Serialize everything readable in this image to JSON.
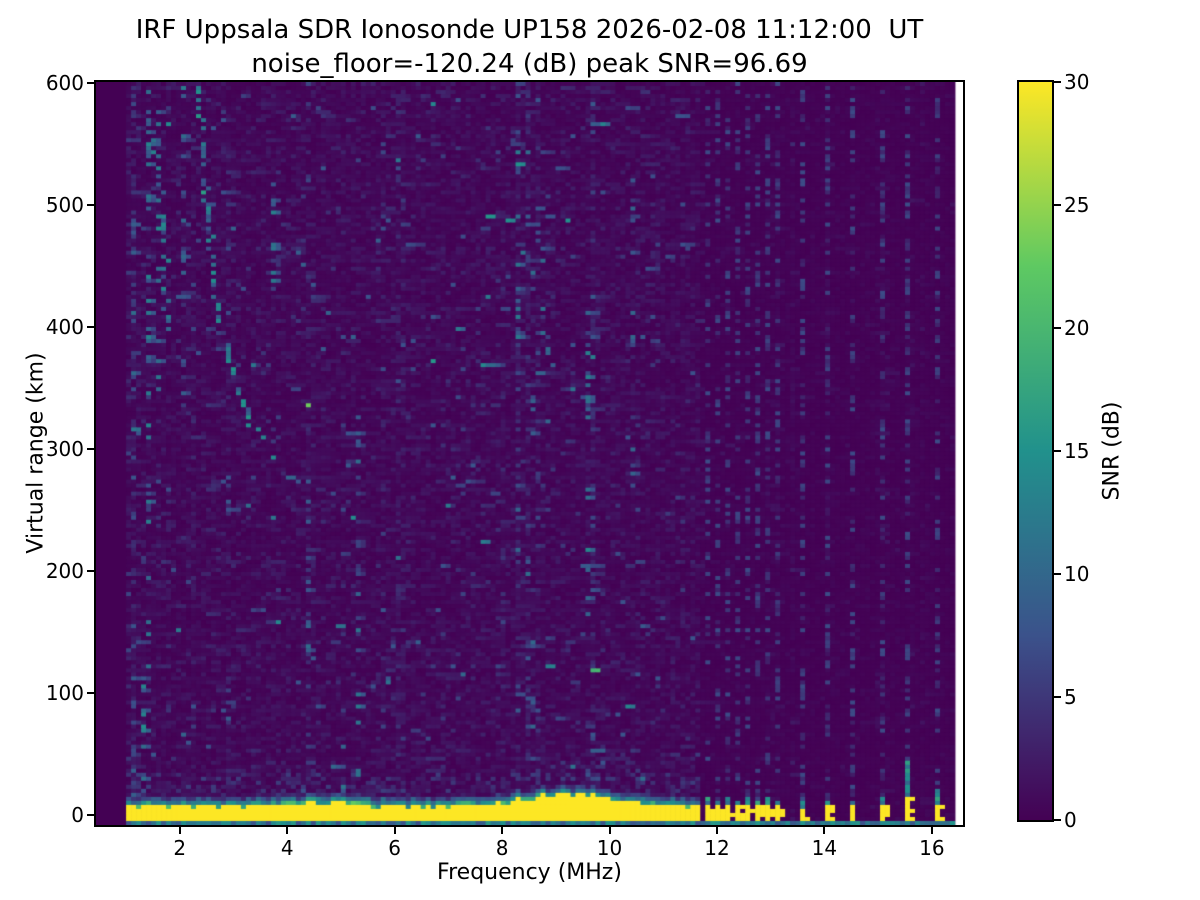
{
  "figure": {
    "title": "IRF Uppsala SDR Ionosonde UP158 2026-02-08 11:12:00  UT",
    "subtitle": "noise_floor=-120.24 (dB) peak SNR=96.69",
    "station": "UP158",
    "timestamp_ut": "2026-02-08 11:12:00 UT",
    "noise_floor_db": -120.24,
    "peak_snr_db": 96.69
  },
  "chart_data": {
    "type": "heatmap",
    "title": "IRF Uppsala SDR Ionosonde UP158 2026-02-08 11:12:00  UT",
    "subtitle": "noise_floor=-120.24 (dB) peak SNR=96.69",
    "xlabel": "Frequency (MHz)",
    "ylabel": "Virtual range (km)",
    "colorbar_label": "SNR (dB)",
    "xlim": [
      0.44,
      16.58
    ],
    "ylim": [
      -8.5,
      601
    ],
    "xticks": [
      2,
      4,
      6,
      8,
      10,
      12,
      14,
      16
    ],
    "yticks": [
      0,
      100,
      200,
      300,
      400,
      500,
      600
    ],
    "colorbar_ticks": [
      0,
      5,
      10,
      15,
      20,
      25,
      30
    ],
    "clim": [
      0,
      30
    ],
    "grid": false,
    "legend": false,
    "colormap": "viridis",
    "colormap_stops": [
      "#440154",
      "#3b528b",
      "#21918c",
      "#5ec962",
      "#fde725"
    ],
    "data_freq_range_mhz": [
      1.0,
      16.43
    ],
    "ground_echo": {
      "freq_mhz": [
        1.0,
        11.7
      ],
      "bottom_km": -6.5,
      "base_top_km": 7,
      "snr_db": 30,
      "bumps": [
        {
          "center_mhz": 8.9,
          "sigma_mhz": 0.55,
          "extra_km": 9
        },
        {
          "center_mhz": 9.8,
          "sigma_mhz": 0.35,
          "extra_km": 5
        },
        {
          "center_mhz": 4.6,
          "sigma_mhz": 0.5,
          "extra_km": 2.5
        },
        {
          "center_mhz": 10.8,
          "sigma_mhz": 0.3,
          "extra_km": 2
        }
      ]
    },
    "bottom_scatter_line": {
      "range_km": [
        -8,
        -6
      ],
      "snr_db": [
        7,
        16
      ]
    },
    "rfi_channels": [
      {
        "freq_mhz": 11.8,
        "bar_top_km": 8,
        "halo_top_km": 14
      },
      {
        "freq_mhz": 12.02,
        "bar_top_km": 7,
        "halo_top_km": 12
      },
      {
        "freq_mhz": 12.24,
        "bar_top_km": 8,
        "halo_top_km": 13
      },
      {
        "freq_mhz": 12.43,
        "bar_top_km": 7,
        "halo_top_km": 12
      },
      {
        "freq_mhz": 12.61,
        "bar_top_km": 8,
        "halo_top_km": 14
      },
      {
        "freq_mhz": 12.76,
        "bar_top_km": 7,
        "halo_top_km": 12
      },
      {
        "freq_mhz": 12.95,
        "bar_top_km": 8,
        "halo_top_km": 13
      },
      {
        "freq_mhz": 13.12,
        "bar_top_km": 7,
        "halo_top_km": 11
      },
      {
        "freq_mhz": 13.55,
        "bar_top_km": 6,
        "halo_top_km": 10
      },
      {
        "freq_mhz": 14.05,
        "bar_top_km": 7,
        "halo_top_km": 12
      },
      {
        "freq_mhz": 14.57,
        "bar_top_km": 7,
        "halo_top_km": 12
      },
      {
        "freq_mhz": 15.07,
        "bar_top_km": 8,
        "halo_top_km": 13
      },
      {
        "freq_mhz": 15.56,
        "bar_top_km": 13,
        "halo_top_km": 45
      },
      {
        "freq_mhz": 16.06,
        "bar_top_km": 9,
        "halo_top_km": 20
      }
    ],
    "noise_streaks": [
      {
        "freq_mhz": 1.12,
        "range_km": [
          0,
          600
        ],
        "density": 0.1,
        "snr_db": [
          3,
          9
        ]
      },
      {
        "freq_mhz": 1.3,
        "range_km": [
          0,
          120
        ],
        "density": 0.3,
        "snr_db": [
          6,
          16
        ]
      },
      {
        "freq_mhz": 1.38,
        "range_km": [
          60,
          600
        ],
        "density": 0.22,
        "snr_db": [
          5,
          14
        ]
      },
      {
        "freq_mhz": 1.62,
        "range_km": [
          300,
          580
        ],
        "density": 0.18,
        "snr_db": [
          4,
          12
        ]
      },
      {
        "freq_mhz": 2.08,
        "range_km": [
          340,
          600
        ],
        "density": 0.18,
        "snr_db": [
          4,
          12
        ]
      },
      {
        "freq_mhz": 3.75,
        "range_km": [
          430,
          520
        ],
        "density": 0.3,
        "snr_db": [
          5,
          13
        ]
      },
      {
        "freq_mhz": 4.42,
        "range_km": [
          60,
          260
        ],
        "density": 0.15,
        "snr_db": [
          4,
          10
        ]
      },
      {
        "freq_mhz": 5.0,
        "range_km": [
          20,
          90
        ],
        "density": 0.2,
        "snr_db": [
          5,
          12
        ]
      },
      {
        "freq_mhz": 5.35,
        "range_km": [
          30,
          330
        ],
        "density": 0.18,
        "snr_db": [
          4,
          12
        ]
      },
      {
        "freq_mhz": 8.32,
        "range_km": [
          330,
          460
        ],
        "density": 0.25,
        "snr_db": [
          5,
          13
        ]
      },
      {
        "freq_mhz": 8.55,
        "range_km": [
          10,
          400
        ],
        "density": 0.16,
        "snr_db": [
          4,
          12
        ]
      },
      {
        "freq_mhz": 9.62,
        "range_km": [
          150,
          430
        ],
        "density": 0.2,
        "snr_db": [
          5,
          14
        ]
      },
      {
        "freq_mhz": 10.45,
        "range_km": [
          250,
          560
        ],
        "density": 0.13,
        "snr_db": [
          4,
          10
        ]
      }
    ],
    "noise_traces": [
      {
        "points": [
          [
            2.35,
            600
          ],
          [
            2.5,
            500
          ],
          [
            2.7,
            420
          ],
          [
            3.0,
            360
          ],
          [
            3.35,
            320
          ],
          [
            3.8,
            295
          ]
        ],
        "density": 0.55,
        "snr_db": [
          7,
          17
        ]
      },
      {
        "points": [
          [
            1.55,
            565
          ],
          [
            1.68,
            480
          ],
          [
            1.78,
            400
          ]
        ],
        "density": 0.45,
        "snr_db": [
          6,
          14
        ]
      },
      {
        "points": [
          [
            4.1,
            480
          ],
          [
            4.5,
            430
          ],
          [
            4.9,
            405
          ]
        ],
        "density": 0.3,
        "snr_db": [
          4,
          11
        ]
      },
      {
        "points": [
          [
            8.4,
            470
          ],
          [
            8.9,
            380
          ],
          [
            9.3,
            345
          ]
        ],
        "density": 0.3,
        "snr_db": [
          4,
          12
        ]
      }
    ]
  }
}
